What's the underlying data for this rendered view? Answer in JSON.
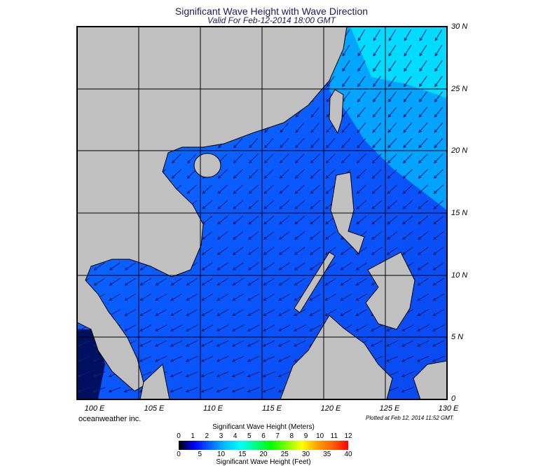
{
  "title": "Significant Wave Height with Wave Direction",
  "subtitle": "Valid For Feb-12-2014 18:00 GMT",
  "map": {
    "lon_range": [
      100,
      130
    ],
    "lat_range": [
      0,
      30
    ],
    "lat_labels": [
      "30 N",
      "25 N",
      "20 N",
      "15 N",
      "10 N",
      "5 N",
      "0"
    ],
    "lon_labels": [
      "100 E",
      "105 E",
      "110 E",
      "115 E",
      "120 E",
      "125 E",
      "130 E"
    ],
    "land_color": "#c0c0c0",
    "water_color": "#0a50ff",
    "high_wave_color": "#00d8ff",
    "arrow_color": "#1a1a6a"
  },
  "credit": "oceanweather inc.",
  "plotted": "Plotted at Feb 12, 2014 11:52 GMT",
  "colorbar": {
    "title_top": "Significant Wave Height (Meters)",
    "title_bottom": "Significant Wave Height (Feet)",
    "meters": [
      "0",
      "1",
      "2",
      "3",
      "4",
      "5",
      "6",
      "7",
      "8",
      "9",
      "10",
      "11",
      "12"
    ],
    "feet": [
      "0",
      "5",
      "10",
      "15",
      "20",
      "25",
      "30",
      "35",
      "40"
    ],
    "colors": [
      "#000000",
      "#0000ff",
      "#0060ff",
      "#00c0ff",
      "#00ffff",
      "#00ff80",
      "#00ff00",
      "#80ff00",
      "#ffff00",
      "#ffa000",
      "#ff6000",
      "#ff0000"
    ]
  }
}
